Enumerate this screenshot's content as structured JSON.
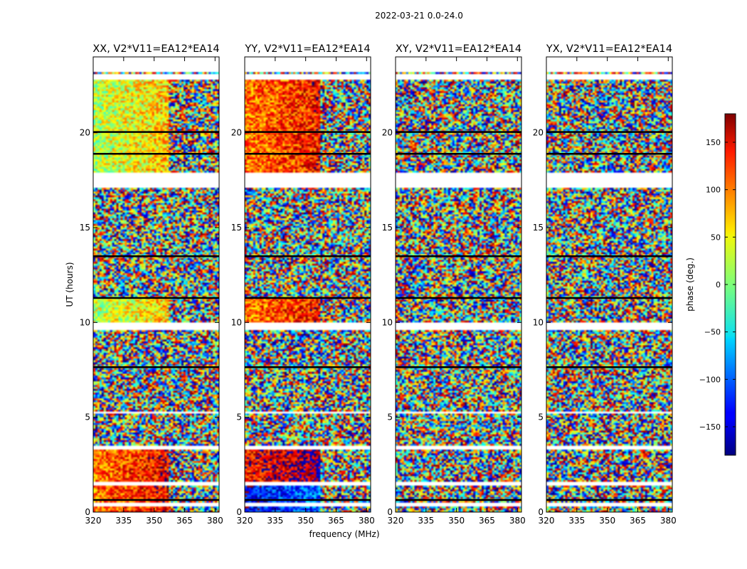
{
  "chart_data": {
    "type": "heatmap",
    "suptitle": "2022-03-21 0.0-24.0",
    "xlabel": "frequency (MHz)",
    "ylabel": "UT (hours)",
    "xlim": [
      320,
      382
    ],
    "ylim": [
      0,
      24
    ],
    "xticks": [
      320,
      335,
      350,
      365,
      380
    ],
    "yticks": [
      0,
      5,
      10,
      15,
      20
    ],
    "panels": [
      {
        "title": "XX, V2*V11=EA12*EA14",
        "coherent_phase": 20
      },
      {
        "title": "YY, V2*V11=EA12*EA14",
        "coherent_phase": 90
      },
      {
        "title": "XY, V2*V11=EA12*EA14",
        "coherent_phase": null
      },
      {
        "title": "YX, V2*V11=EA12*EA14",
        "coherent_phase": null
      }
    ],
    "colorbar": {
      "label": "phase (deg.)",
      "range": [
        -180,
        180
      ],
      "ticks": [
        150,
        100,
        50,
        0,
        -50,
        -100,
        -150
      ],
      "tick_labels": [
        "150",
        "100",
        "50",
        "0",
        "−50",
        "−100",
        "−150"
      ],
      "colormap": "jet"
    },
    "flagged_ut_intervals": [
      [
        17.1,
        17.9
      ],
      [
        3.3,
        3.5
      ],
      [
        1.4,
        1.6
      ],
      [
        0.35,
        0.45
      ],
      [
        5.15,
        5.25
      ],
      [
        9.85,
        9.95
      ],
      [
        9.65,
        9.75
      ],
      [
        22.8,
        23.1
      ]
    ],
    "dark_ut_lines": [
      7.65,
      11.3,
      13.5,
      18.9,
      20.05,
      0.65
    ]
  }
}
